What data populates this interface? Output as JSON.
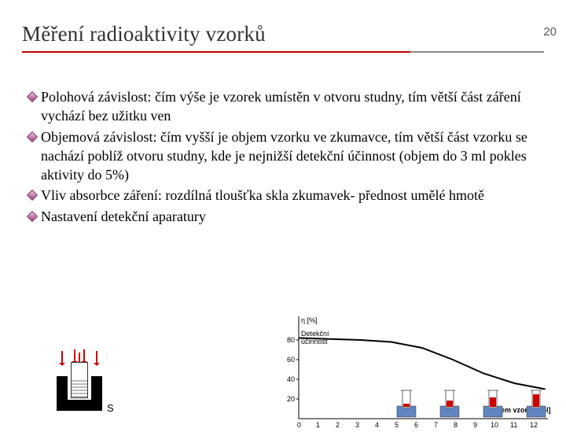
{
  "page_number": "20",
  "title": "Měření radioaktivity vzorků",
  "colors": {
    "underline_main": "#c00000",
    "underline_right": "#888888",
    "bullet_fill": "#a04080",
    "chart_curve": "#000000",
    "tube_fill": "#c00000",
    "base_fill": "#6085c0"
  },
  "bullets": [
    "Polohová závislost: čím výše je vzorek umístěn v otvoru studny, tím větší část záření vychází bez užitku ven",
    "Objemová závislost: čím vyšší je objem vzorku ve zkumavce, tím větší část vzorku se nachází poblíž otvoru studny, kde je nejnižší detekční účinnost (objem do 3 ml pokles aktivity do 5%)",
    "Vliv absorbce záření: rozdílná tloušťka skla zkumavek- přednost umělé hmotě",
    "Nastavení detekční aparatury"
  ],
  "detector_s": "S",
  "chart": {
    "y_unit": "η [%]",
    "y_label": "Detekční účinnost",
    "x_label": "Objem vzorku [ml]",
    "x_ticks": [
      "0",
      "1",
      "2",
      "3",
      "4",
      "5",
      "6",
      "7",
      "8",
      "9",
      "10",
      "11",
      "12"
    ],
    "y_ticks": [
      "20",
      "40",
      "60",
      "80"
    ],
    "curve_points": [
      [
        0,
        82
      ],
      [
        40,
        81
      ],
      [
        80,
        80
      ],
      [
        120,
        78
      ],
      [
        160,
        72
      ],
      [
        200,
        60
      ],
      [
        240,
        46
      ],
      [
        280,
        36
      ],
      [
        320,
        30
      ]
    ],
    "tubes": [
      {
        "x": 155,
        "fill_h": 4
      },
      {
        "x": 210,
        "fill_h": 8
      },
      {
        "x": 265,
        "fill_h": 12
      },
      {
        "x": 320,
        "fill_h": 16
      }
    ]
  }
}
